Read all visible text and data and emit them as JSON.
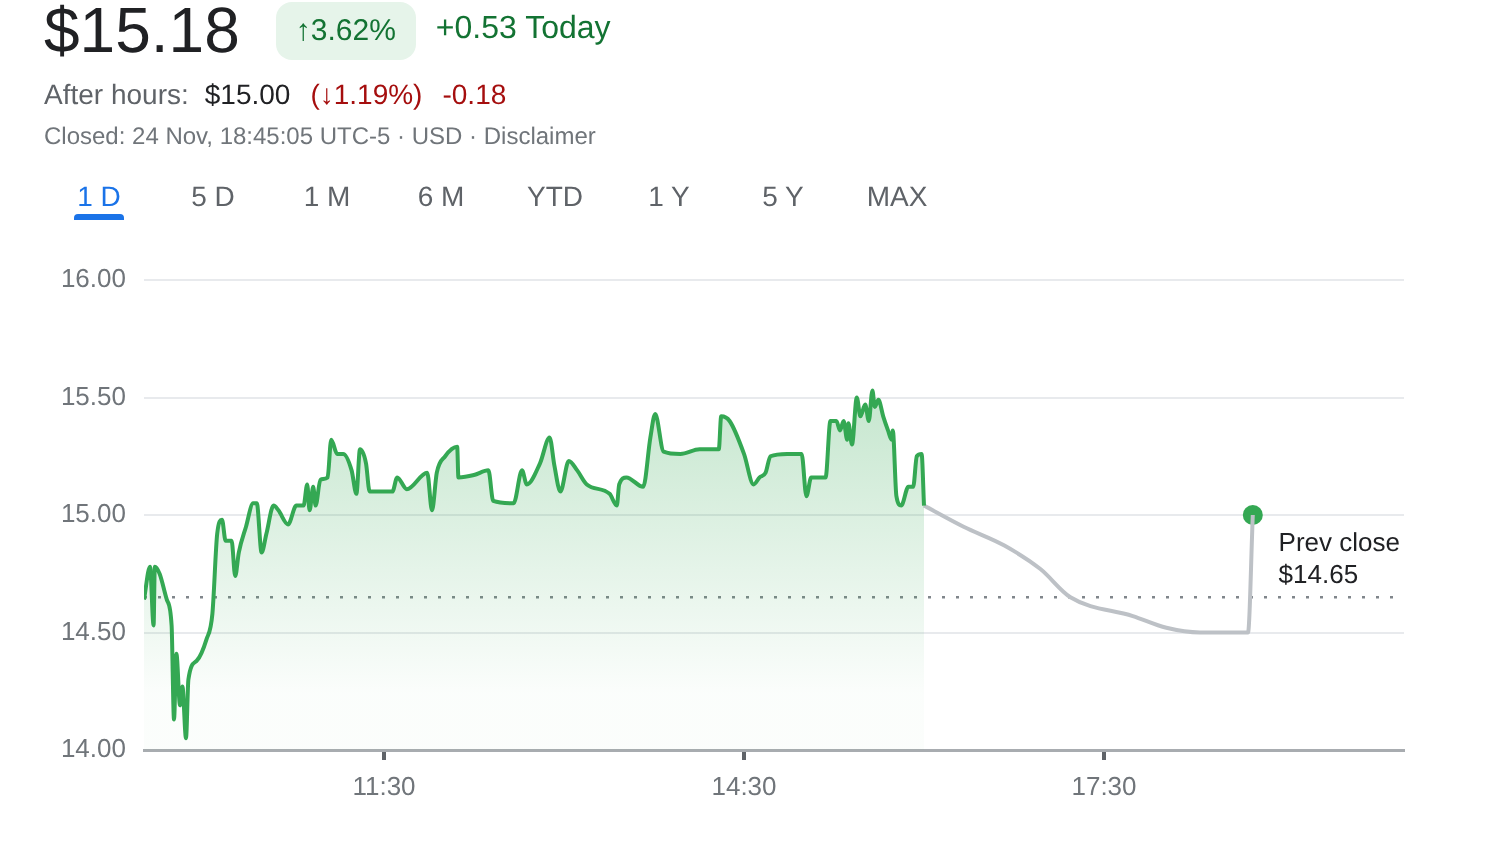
{
  "chart_data": {
    "type": "area",
    "title": "$15.18",
    "subtitle": "Closed: 24 Nov, 18:45:05 UTC-5 · USD · Disclaimer",
    "annotations": [
      "↑3.62%",
      "+0.53 Today",
      "After hours:",
      "$15.00",
      "(↓1.19%)",
      "-0.18",
      "1 D",
      "5 D",
      "1 M",
      "6 M",
      "YTD",
      "1 Y",
      "5 Y",
      "MAX"
    ],
    "series": [
      {
        "color": "#34a853",
        "x": [
          9.5,
          9.55,
          9.58,
          9.59,
          9.63,
          9.69,
          9.73,
          9.75,
          9.77,
          9.8,
          9.82,
          9.85,
          9.87,
          9.94,
          10.02,
          10.07,
          10.11,
          10.15,
          10.18,
          10.23,
          10.26,
          10.29,
          10.35,
          10.41,
          10.44,
          10.48,
          10.52,
          10.58,
          10.62,
          10.7,
          10.77,
          10.83,
          10.86,
          10.88,
          10.91,
          10.93,
          10.97,
          11.03,
          11.06,
          11.11,
          11.16,
          11.23,
          11.27,
          11.3,
          11.35,
          11.38,
          11.57,
          11.61,
          11.69,
          11.86,
          11.9,
          11.94,
          12.01,
          12.11,
          12.12,
          12.25,
          12.37,
          12.41,
          12.58,
          12.65,
          12.69,
          12.8,
          12.88,
          12.92,
          12.97,
          13.04,
          13.11,
          13.19,
          13.38,
          13.44,
          13.46,
          13.52,
          13.66,
          13.72,
          13.76,
          13.83,
          13.97,
          14.13,
          14.29,
          14.31,
          14.38,
          14.5,
          14.58,
          14.63,
          14.68,
          14.72,
          14.86,
          14.98,
          15.02,
          15.06,
          15.18,
          15.22,
          15.27,
          15.3,
          15.33,
          15.36,
          15.37,
          15.4,
          15.44,
          15.47,
          15.51,
          15.54,
          15.57,
          15.59,
          15.62,
          15.66,
          15.7,
          15.73,
          15.74,
          15.77,
          15.81,
          15.87,
          15.91,
          15.94,
          15.98,
          16.0
        ],
        "values": [
          14.64,
          14.78,
          14.53,
          14.78,
          14.75,
          14.64,
          14.53,
          14.13,
          14.41,
          14.19,
          14.27,
          14.05,
          14.3,
          14.38,
          14.47,
          14.58,
          14.92,
          14.98,
          14.89,
          14.89,
          14.74,
          14.84,
          14.95,
          15.05,
          15.05,
          14.84,
          14.92,
          15.04,
          15.02,
          14.96,
          15.04,
          15.04,
          15.13,
          15.02,
          15.12,
          15.04,
          15.15,
          15.16,
          15.32,
          15.26,
          15.26,
          15.19,
          15.09,
          15.28,
          15.22,
          15.1,
          15.1,
          15.16,
          15.11,
          15.18,
          15.02,
          15.18,
          15.25,
          15.29,
          15.16,
          15.17,
          15.19,
          15.06,
          15.05,
          15.19,
          15.13,
          15.22,
          15.33,
          15.21,
          15.1,
          15.23,
          15.19,
          15.13,
          15.09,
          15.04,
          15.13,
          15.16,
          15.12,
          15.33,
          15.43,
          15.27,
          15.26,
          15.28,
          15.28,
          15.42,
          15.4,
          15.26,
          15.13,
          15.16,
          15.18,
          15.25,
          15.26,
          15.26,
          15.08,
          15.16,
          15.16,
          15.4,
          15.4,
          15.36,
          15.4,
          15.32,
          15.39,
          15.3,
          15.5,
          15.42,
          15.47,
          15.4,
          15.53,
          15.46,
          15.49,
          15.42,
          15.36,
          15.32,
          15.36,
          15.08,
          15.04,
          15.12,
          15.12,
          15.25,
          15.26,
          15.04
        ]
      },
      {
        "type": "line",
        "color": "#bdc1c6",
        "x": [
          16.0,
          16.33,
          16.67,
          16.97,
          17.22,
          17.74,
          18.02,
          18.3,
          18.7,
          18.74
        ],
        "values": [
          15.04,
          14.95,
          14.87,
          14.77,
          14.65,
          14.57,
          14.52,
          14.5,
          14.5,
          15.0
        ]
      },
      {
        "type": "scatter",
        "color": "#34a853",
        "marker": "circle",
        "x": [
          18.74
        ],
        "values": [
          15.0
        ]
      }
    ],
    "xlim": [
      9.5,
      20
    ],
    "xticks": [
      {
        "value": 11.5,
        "label": "11:30"
      },
      {
        "value": 14.5,
        "label": "14:30"
      },
      {
        "value": 17.5,
        "label": "17:30"
      }
    ],
    "ylim": [
      14,
      16
    ],
    "yticks": [
      {
        "value": 14,
        "label": "14.00"
      },
      {
        "value": 14.5,
        "label": "14.50"
      },
      {
        "value": 15,
        "label": "15.00"
      },
      {
        "value": 15.5,
        "label": "15.50"
      },
      {
        "value": 16,
        "label": "16.00"
      }
    ],
    "grid": "y",
    "ref_lines": [
      {
        "axis": "y",
        "value": 14.65,
        "label": "Prev close $14.65",
        "line_style": "dotted",
        "color": "#80868b"
      }
    ]
  }
}
